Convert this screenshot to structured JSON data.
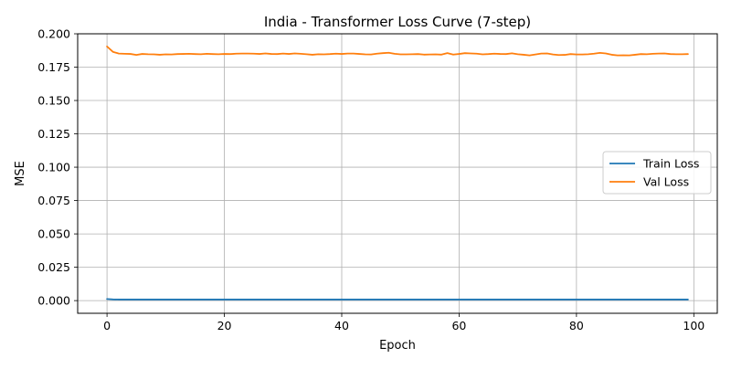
{
  "chart_data": {
    "type": "line",
    "title": "India - Transformer Loss Curve (7-step)",
    "xlabel": "Epoch",
    "ylabel": "MSE",
    "xlim": [
      -5,
      104
    ],
    "ylim": [
      -0.0095,
      0.2
    ],
    "xticks": [
      0,
      20,
      40,
      60,
      80,
      100
    ],
    "xtick_labels": [
      "0",
      "20",
      "40",
      "60",
      "80",
      "100"
    ],
    "yticks": [
      0.0,
      0.025,
      0.05,
      0.075,
      0.1,
      0.125,
      0.15,
      0.175,
      0.2
    ],
    "ytick_labels": [
      "0.000",
      "0.025",
      "0.050",
      "0.075",
      "0.100",
      "0.125",
      "0.150",
      "0.175",
      "0.200"
    ],
    "grid": true,
    "legend_position": "center-right",
    "series": [
      {
        "name": "Train Loss",
        "color": "#1f77b4",
        "values": [
          0.0012,
          0.0009,
          0.0008,
          0.0008,
          0.0008,
          0.0008,
          0.0008,
          0.0008,
          0.0008,
          0.0008,
          0.0008,
          0.0008,
          0.0008,
          0.0008,
          0.0008,
          0.0008,
          0.0008,
          0.0008,
          0.0008,
          0.0008,
          0.0008,
          0.0008,
          0.0008,
          0.0008,
          0.0008,
          0.0008,
          0.0008,
          0.0008,
          0.0008,
          0.0008,
          0.0008,
          0.0008,
          0.0008,
          0.0008,
          0.0008,
          0.0008,
          0.0008,
          0.0008,
          0.0008,
          0.0008,
          0.0008,
          0.0008,
          0.0008,
          0.0008,
          0.0008,
          0.0008,
          0.0008,
          0.0008,
          0.0008,
          0.0008,
          0.0008,
          0.0008,
          0.0008,
          0.0008,
          0.0008,
          0.0008,
          0.0008,
          0.0008,
          0.0008,
          0.0008,
          0.0008,
          0.0008,
          0.0008,
          0.0008,
          0.0008,
          0.0008,
          0.0008,
          0.0008,
          0.0008,
          0.0008,
          0.0008,
          0.0008,
          0.0008,
          0.0008,
          0.0008,
          0.0008,
          0.0008,
          0.0008,
          0.0008,
          0.0008,
          0.0008,
          0.0008,
          0.0008,
          0.0008,
          0.0008,
          0.0008,
          0.0008,
          0.0008,
          0.0008,
          0.0008,
          0.0008,
          0.0008,
          0.0008,
          0.0008,
          0.0008,
          0.0008,
          0.0008,
          0.0008,
          0.0008,
          0.0008
        ]
      },
      {
        "name": "Val Loss",
        "color": "#ff7f0e",
        "values": [
          0.1905,
          0.1865,
          0.1852,
          0.185,
          0.1849,
          0.1842,
          0.1849,
          0.1847,
          0.1846,
          0.1843,
          0.1846,
          0.1845,
          0.1848,
          0.1849,
          0.185,
          0.1848,
          0.1847,
          0.185,
          0.1848,
          0.1847,
          0.1849,
          0.1848,
          0.1851,
          0.1852,
          0.1852,
          0.1851,
          0.1849,
          0.1853,
          0.1849,
          0.1848,
          0.1852,
          0.1849,
          0.1853,
          0.185,
          0.1847,
          0.1843,
          0.1847,
          0.1846,
          0.1848,
          0.1851,
          0.1849,
          0.1852,
          0.1852,
          0.1849,
          0.1846,
          0.1845,
          0.1851,
          0.1855,
          0.1858,
          0.185,
          0.1846,
          0.1846,
          0.1847,
          0.1848,
          0.1844,
          0.1845,
          0.1846,
          0.1844,
          0.1855,
          0.1844,
          0.1849,
          0.1855,
          0.1853,
          0.1851,
          0.1846,
          0.1848,
          0.1851,
          0.1849,
          0.1848,
          0.1854,
          0.1847,
          0.1843,
          0.1838,
          0.1845,
          0.1852,
          0.1853,
          0.1845,
          0.1841,
          0.1842,
          0.1848,
          0.1845,
          0.1845,
          0.1847,
          0.1851,
          0.1857,
          0.1853,
          0.1843,
          0.1838,
          0.1839,
          0.1838,
          0.1843,
          0.1848,
          0.1847,
          0.185,
          0.1852,
          0.1853,
          0.1848,
          0.1847,
          0.1847,
          0.1848
        ]
      }
    ]
  }
}
